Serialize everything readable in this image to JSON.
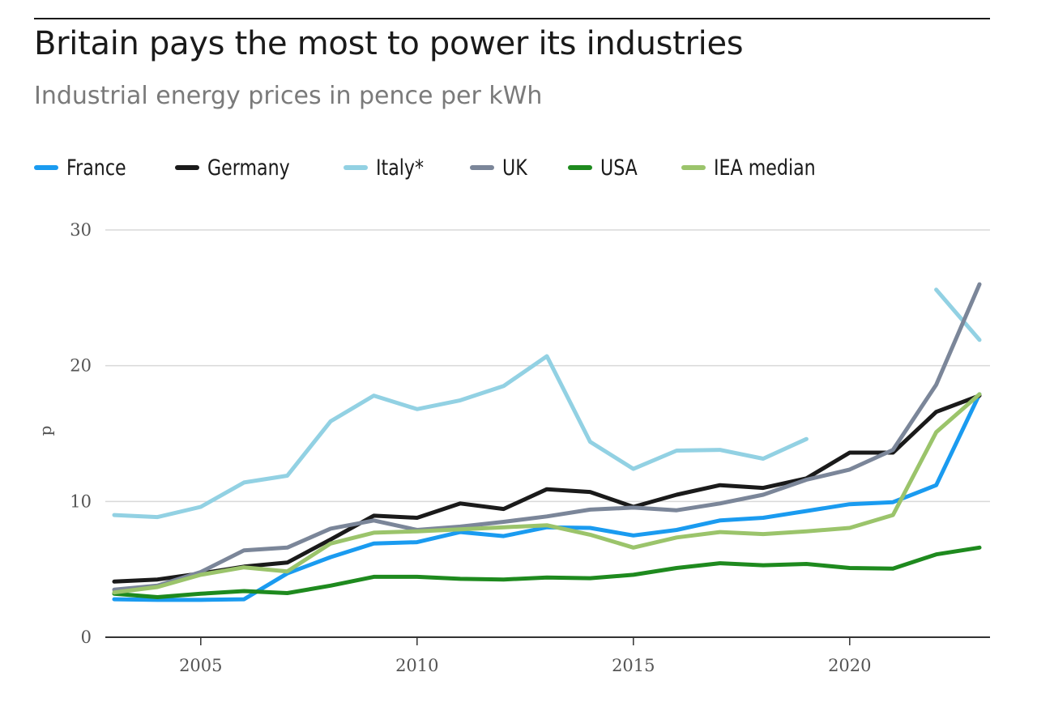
{
  "header": {
    "title": "Britain pays the most to power its industries",
    "subtitle": "Industrial energy prices in pence per kWh"
  },
  "chart_data": {
    "type": "line",
    "title": "Britain pays the most to power its industries",
    "subtitle": "Industrial energy prices in pence per kWh",
    "xlabel": "",
    "ylabel": "p",
    "xlim": [
      2003,
      2023
    ],
    "ylim": [
      0,
      30
    ],
    "x_ticks": [
      2005,
      2010,
      2015,
      2020
    ],
    "y_ticks": [
      0,
      10,
      20,
      30
    ],
    "grid": "horizontal",
    "legend_position": "top-left",
    "x": [
      2003,
      2004,
      2005,
      2006,
      2007,
      2008,
      2009,
      2010,
      2011,
      2012,
      2013,
      2014,
      2015,
      2016,
      2017,
      2018,
      2019,
      2020,
      2021,
      2022,
      2023
    ],
    "series": [
      {
        "name": "France",
        "color": "#1a9bf0",
        "values": [
          2.8,
          2.75,
          2.75,
          2.8,
          4.7,
          5.9,
          6.9,
          7.0,
          7.75,
          7.45,
          8.1,
          8.05,
          7.5,
          7.9,
          8.6,
          8.8,
          9.3,
          9.8,
          9.95,
          11.2,
          17.9
        ]
      },
      {
        "name": "Germany",
        "color": "#1a1a1a",
        "values": [
          4.1,
          4.25,
          4.7,
          5.2,
          5.5,
          7.2,
          8.95,
          8.8,
          9.85,
          9.45,
          10.9,
          10.7,
          9.6,
          10.5,
          11.2,
          11.0,
          11.7,
          13.6,
          13.6,
          16.6,
          17.8
        ]
      },
      {
        "name": "Italy*",
        "color": "#92d1e3",
        "values": [
          9.0,
          8.85,
          9.6,
          11.4,
          11.9,
          15.9,
          17.8,
          16.8,
          17.45,
          18.5,
          20.7,
          14.4,
          12.4,
          13.75,
          13.8,
          13.15,
          14.6,
          null,
          null,
          25.6,
          21.9
        ]
      },
      {
        "name": "UK",
        "color": "#7b8699",
        "values": [
          3.5,
          3.8,
          4.8,
          6.4,
          6.6,
          8.0,
          8.6,
          7.9,
          8.15,
          8.5,
          8.9,
          9.4,
          9.55,
          9.35,
          9.85,
          10.5,
          11.6,
          12.35,
          13.8,
          18.6,
          26.0
        ]
      },
      {
        "name": "USA",
        "color": "#1e8a1e",
        "values": [
          3.2,
          2.95,
          3.2,
          3.4,
          3.25,
          3.8,
          4.45,
          4.45,
          4.3,
          4.25,
          4.4,
          4.35,
          4.6,
          5.1,
          5.45,
          5.3,
          5.4,
          5.1,
          5.05,
          6.1,
          6.6
        ]
      },
      {
        "name": "IEA median",
        "color": "#9bc46b",
        "values": [
          3.3,
          3.7,
          4.6,
          5.15,
          4.85,
          6.9,
          7.7,
          7.8,
          7.95,
          8.1,
          8.25,
          7.55,
          6.6,
          7.35,
          7.75,
          7.6,
          7.8,
          8.05,
          9.0,
          15.1,
          17.9
        ]
      }
    ]
  }
}
